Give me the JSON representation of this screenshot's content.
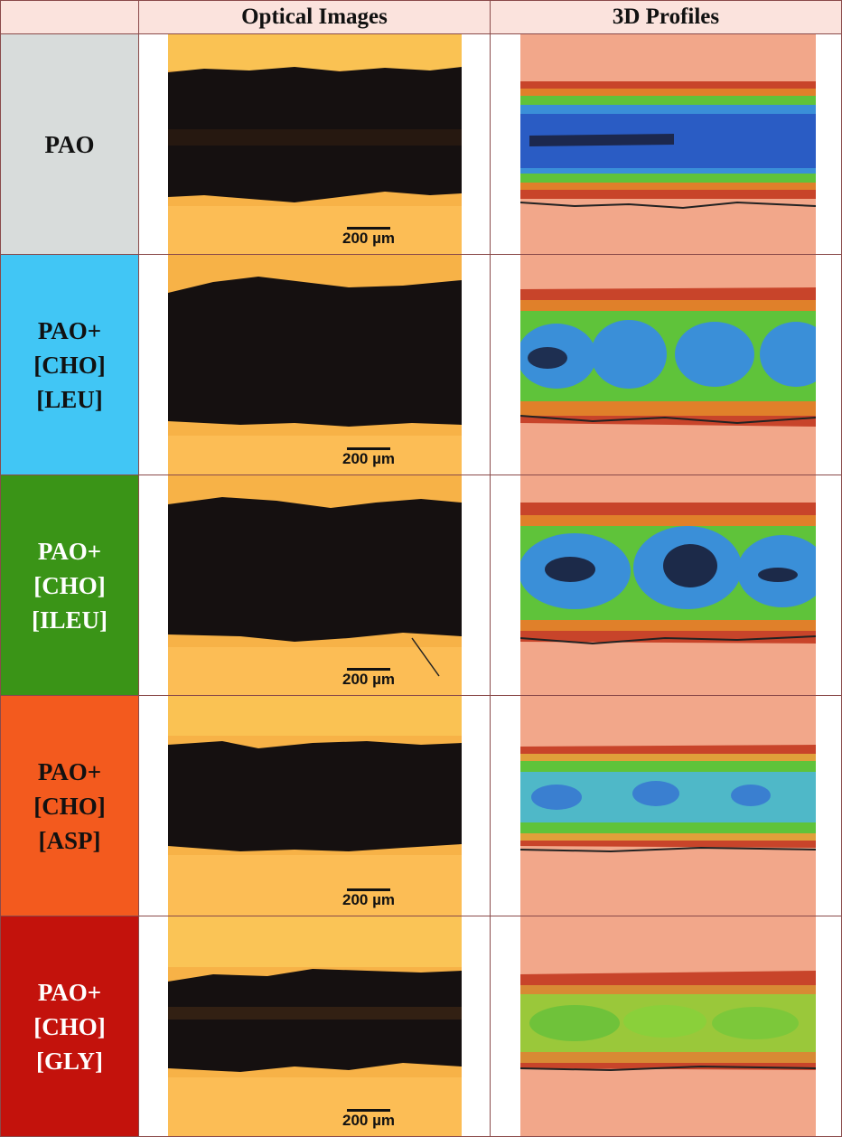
{
  "header": {
    "corner": "",
    "col_optical": "Optical Images",
    "col_profiles": "3D Profiles"
  },
  "rows": [
    {
      "label": [
        "PAO"
      ],
      "label_bg": "#d8dcdb",
      "label_color": "#111111",
      "scale_bar": "200 µm"
    },
    {
      "label": [
        "PAO+",
        "[CHO]",
        "[LEU]"
      ],
      "label_bg": "#41c6f5",
      "label_color": "#111111",
      "scale_bar": "200 µm"
    },
    {
      "label": [
        "PAO+",
        "[CHO]",
        "[ILEU]"
      ],
      "label_bg": "#3a9417",
      "label_color": "#ffffff",
      "scale_bar": "200 µm"
    },
    {
      "label": [
        "PAO+",
        "[CHO]",
        "[ASP]"
      ],
      "label_bg": "#f35a1e",
      "label_color": "#111111",
      "scale_bar": "200 µm"
    },
    {
      "label": [
        "PAO+",
        "[CHO]",
        "[GLY]"
      ],
      "label_bg": "#c3120c",
      "label_color": "#ffffff",
      "scale_bar": "200 µm"
    }
  ]
}
